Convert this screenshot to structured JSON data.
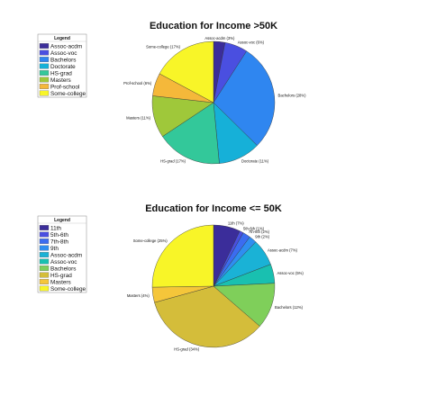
{
  "chart_data": [
    {
      "type": "pie",
      "title": "Education for Income >50K",
      "legend_title": "Legend",
      "legend_position": "top-left",
      "categories": [
        "Assoc-acdm",
        "Assoc-voc",
        "Bachelors",
        "Doctorate",
        "HS-grad",
        "Masters",
        "Prof-school",
        "Some-college"
      ],
      "values": [
        3,
        6,
        28,
        11,
        17,
        11,
        6,
        17
      ],
      "slice_labels": [
        "Assoc-acdm (3%)",
        "Assoc-voc (6%)",
        "Bachelors (28%)",
        "Doctorate (11%)",
        "HS-grad (17%)",
        "Masters (11%)",
        "Prof-school (6%)",
        "Some-college (17%)"
      ],
      "colors": [
        "#3b2d9a",
        "#4a4fe0",
        "#2f86f0",
        "#16b0d8",
        "#33c89a",
        "#9fc83a",
        "#f5b83a",
        "#f8f528"
      ]
    },
    {
      "type": "pie",
      "title": "Education for Income <= 50K",
      "legend_title": "Legend",
      "legend_position": "top-left",
      "categories": [
        "11th",
        "5th-6th",
        "7th-8th",
        "9th",
        "Assoc-acdm",
        "Assoc-voc",
        "Bachelors",
        "HS-grad",
        "Masters",
        "Some-college"
      ],
      "values": [
        7,
        1,
        2,
        2,
        7,
        5,
        12,
        34,
        4,
        25
      ],
      "slice_labels": [
        "11th (7%)",
        "5th-6th (1%)",
        "7th-8th (2%)",
        "9th (2%)",
        "Assoc-acdm (7%)",
        "Assoc-voc (5%)",
        "Bachelors (12%)",
        "HS-grad (34%)",
        "Masters (4%)",
        "Some-college (25%)"
      ],
      "colors": [
        "#3b2d9a",
        "#4a4fe0",
        "#3b6cf0",
        "#2f8ef0",
        "#1ab2d6",
        "#19c0b0",
        "#7fcf5a",
        "#d4bd3a",
        "#f5c63a",
        "#f8f528"
      ]
    }
  ]
}
